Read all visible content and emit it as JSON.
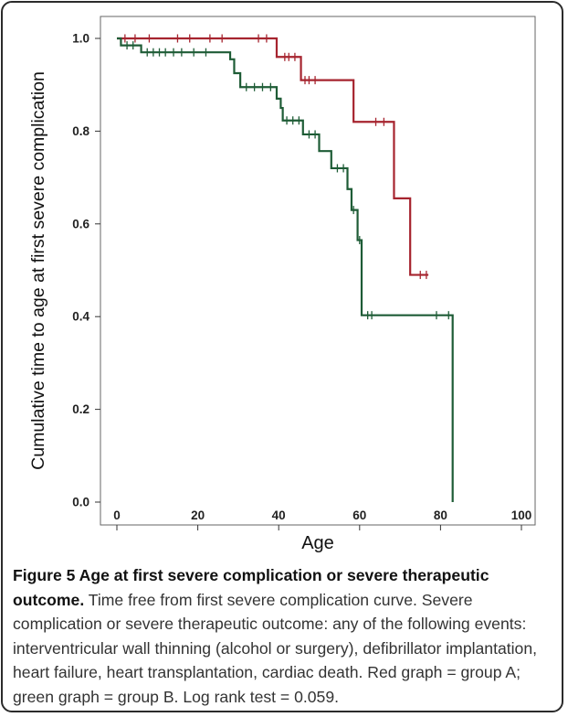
{
  "chart_data": {
    "type": "line",
    "subtype": "kaplan-meier",
    "xlabel": "Age",
    "ylabel": "Cumulative time to age at first severe complication",
    "xlim": [
      0,
      100
    ],
    "ylim": [
      0.0,
      1.0
    ],
    "xticks": [
      "0",
      "20",
      "40",
      "60",
      "80",
      "100"
    ],
    "yticks": [
      "0.0",
      "0.2",
      "0.4",
      "0.6",
      "0.8",
      "1.0"
    ],
    "grid": false,
    "series": [
      {
        "color": "#a6242f",
        "steps": [
          [
            0,
            1.0
          ],
          [
            39.5,
            1.0
          ],
          [
            39.5,
            0.96
          ],
          [
            45.5,
            0.96
          ],
          [
            45.5,
            0.91
          ],
          [
            58.5,
            0.91
          ],
          [
            58.5,
            0.82
          ],
          [
            68.5,
            0.82
          ],
          [
            68.5,
            0.655
          ],
          [
            72.5,
            0.655
          ],
          [
            72.5,
            0.49
          ],
          [
            77,
            0.49
          ]
        ],
        "censored": [
          [
            2,
            1.0
          ],
          [
            4.5,
            1.0
          ],
          [
            8,
            1.0
          ],
          [
            15,
            1.0
          ],
          [
            18,
            1.0
          ],
          [
            23,
            1.0
          ],
          [
            26,
            1.0
          ],
          [
            35,
            1.0
          ],
          [
            37,
            1.0
          ],
          [
            41.5,
            0.96
          ],
          [
            42.5,
            0.96
          ],
          [
            44,
            0.96
          ],
          [
            46.5,
            0.91
          ],
          [
            47.5,
            0.91
          ],
          [
            49,
            0.91
          ],
          [
            64,
            0.82
          ],
          [
            66,
            0.82
          ],
          [
            75,
            0.49
          ],
          [
            76.5,
            0.49
          ]
        ]
      },
      {
        "color": "#1e5c36",
        "steps": [
          [
            0,
            1.0
          ],
          [
            1,
            1.0
          ],
          [
            1,
            0.985
          ],
          [
            6,
            0.985
          ],
          [
            6,
            0.97
          ],
          [
            28,
            0.97
          ],
          [
            28,
            0.955
          ],
          [
            29,
            0.955
          ],
          [
            29,
            0.925
          ],
          [
            30.5,
            0.925
          ],
          [
            30.5,
            0.895
          ],
          [
            39.5,
            0.895
          ],
          [
            39.5,
            0.87
          ],
          [
            40.5,
            0.87
          ],
          [
            40.5,
            0.85
          ],
          [
            41,
            0.85
          ],
          [
            41,
            0.823
          ],
          [
            46,
            0.823
          ],
          [
            46,
            0.793
          ],
          [
            50,
            0.793
          ],
          [
            50,
            0.757
          ],
          [
            53,
            0.757
          ],
          [
            53,
            0.72
          ],
          [
            57,
            0.72
          ],
          [
            57,
            0.675
          ],
          [
            58,
            0.675
          ],
          [
            58,
            0.63
          ],
          [
            59.5,
            0.63
          ],
          [
            59.5,
            0.565
          ],
          [
            60.5,
            0.565
          ],
          [
            60.5,
            0.403
          ],
          [
            83,
            0.403
          ],
          [
            83,
            0.0
          ]
        ],
        "censored": [
          [
            2.5,
            0.985
          ],
          [
            4,
            0.985
          ],
          [
            7.5,
            0.97
          ],
          [
            9,
            0.97
          ],
          [
            10.5,
            0.97
          ],
          [
            12,
            0.97
          ],
          [
            14,
            0.97
          ],
          [
            16,
            0.97
          ],
          [
            19,
            0.97
          ],
          [
            22,
            0.97
          ],
          [
            32,
            0.895
          ],
          [
            34,
            0.895
          ],
          [
            36,
            0.895
          ],
          [
            38,
            0.895
          ],
          [
            42,
            0.823
          ],
          [
            43.5,
            0.823
          ],
          [
            45,
            0.823
          ],
          [
            47.5,
            0.793
          ],
          [
            49,
            0.793
          ],
          [
            54.5,
            0.72
          ],
          [
            56,
            0.72
          ],
          [
            58.5,
            0.63
          ],
          [
            60,
            0.565
          ],
          [
            62,
            0.403
          ],
          [
            63,
            0.403
          ],
          [
            79,
            0.403
          ],
          [
            82,
            0.403
          ]
        ]
      }
    ]
  },
  "caption": {
    "title": "Figure 5 Age at first severe complication or severe therapeutic outcome.",
    "body": " Time free from first severe complication curve. Severe complication or severe therapeutic outcome: any of the following events: interventricular wall thinning (alcohol or surgery), defibrillator implantation, heart failure, heart transplantation, cardiac death. Red graph = group A; green graph = group B. Log rank test = 0.059."
  }
}
